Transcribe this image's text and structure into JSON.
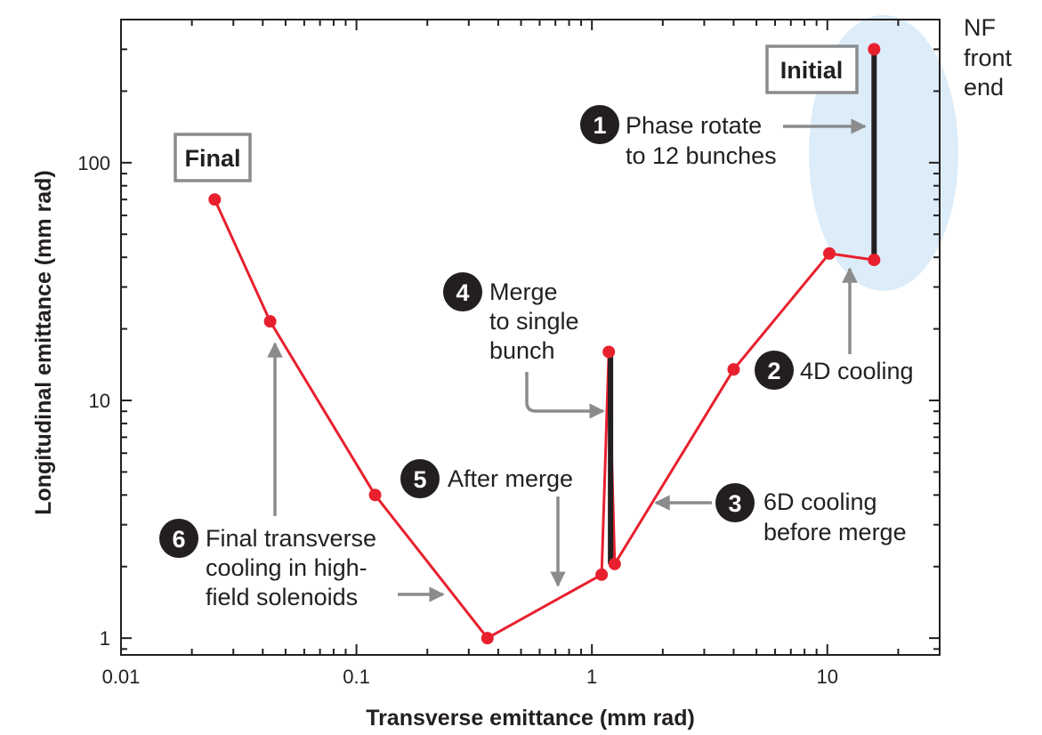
{
  "chart_data": {
    "type": "line",
    "xscale": "log",
    "yscale": "log",
    "xlabel": "Transverse emittance (mm rad)",
    "ylabel": "Longitudinal emittance (mm rad)",
    "xlim": [
      0.01,
      30
    ],
    "ylim": [
      0.85,
      400
    ],
    "xticks": [
      0.01,
      0.1,
      1,
      10
    ],
    "xtick_labels": [
      "0.01",
      "0.1",
      "1",
      "10"
    ],
    "yticks": [
      1,
      10,
      100
    ],
    "ytick_labels": [
      "1",
      "10",
      "100"
    ],
    "grid": false,
    "series": [
      {
        "color": "#e8202e",
        "x": [
          0.025,
          0.043,
          0.12,
          0.36,
          1.1,
          1.18,
          1.25,
          4.0,
          10.2,
          15.8
        ],
        "y": [
          70,
          21.5,
          4.0,
          1.0,
          1.85,
          16,
          2.05,
          13.5,
          41.5,
          39
        ]
      }
    ],
    "vertical_segments": [
      {
        "color": "#231f20",
        "x": 15.8,
        "y": [
          39,
          300
        ]
      },
      {
        "color": "#231f20",
        "x": 1.2,
        "y": [
          2.05,
          16
        ]
      }
    ],
    "top_point": {
      "x": 15.8,
      "y": 300
    },
    "highlight_color": "#dcecf8",
    "annotations": {
      "initial": "Initial",
      "final": "Final",
      "nf_line1": "NF",
      "nf_line2": "front",
      "nf_line3": "end",
      "step1_num": "1",
      "step1_line1": "Phase rotate",
      "step1_line2": "to 12 bunches",
      "step2_num": "2",
      "step2_line1": "4D cooling",
      "step3_num": "3",
      "step3_line1": "6D cooling",
      "step3_line2": "before merge",
      "step4_num": "4",
      "step4_line1": "Merge",
      "step4_line2": "to single",
      "step4_line3": "bunch",
      "step5_num": "5",
      "step5_line1": "After merge",
      "step6_num": "6",
      "step6_line1": "Final transverse",
      "step6_line2": "cooling in high-",
      "step6_line3": "field solenoids"
    }
  }
}
